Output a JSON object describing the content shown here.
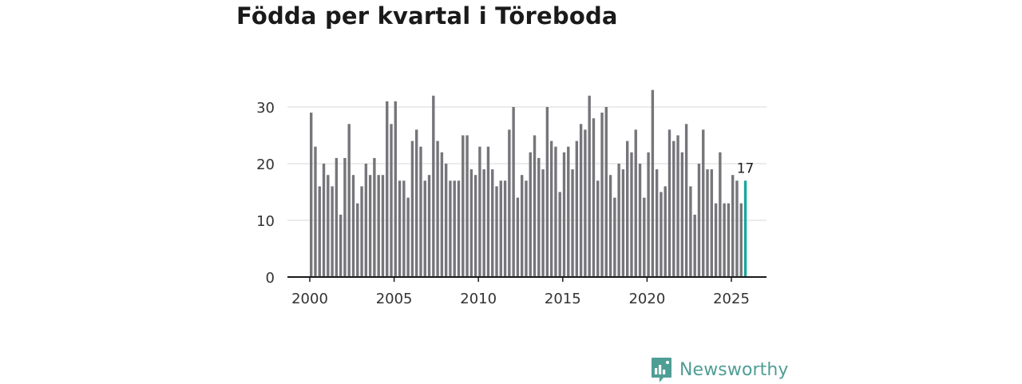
{
  "chart_data": {
    "type": "bar",
    "title": "Födda per kvartal i Töreboda",
    "xlabel": "",
    "ylabel": "",
    "x_axis": {
      "min": 2000,
      "max": 2027,
      "ticks": [
        2000,
        2005,
        2010,
        2015,
        2020,
        2025
      ]
    },
    "y_axis": {
      "min": 0,
      "max": 35,
      "ticks": [
        0,
        10,
        20,
        30
      ]
    },
    "grid": "horizontal",
    "series": [
      {
        "start_quarter": "2000-Q1",
        "values": [
          29,
          23,
          16,
          20,
          18,
          16,
          21,
          11,
          21,
          27,
          18,
          13,
          16,
          20,
          18,
          21,
          18,
          18,
          31,
          27,
          31,
          17,
          17,
          14,
          24,
          26,
          23,
          17,
          18,
          32,
          24,
          22,
          20,
          17,
          17,
          17,
          25,
          25,
          19,
          18,
          23,
          19,
          23,
          19,
          16,
          17,
          17,
          26,
          30,
          14,
          18,
          17,
          22,
          25,
          21,
          19,
          30,
          24,
          23,
          15,
          22,
          23,
          19,
          24,
          27,
          26,
          32,
          28,
          17,
          29,
          30,
          18,
          14,
          20,
          19,
          24,
          22,
          26,
          20,
          14,
          22,
          33,
          19,
          15,
          16,
          26,
          24,
          25,
          22,
          27,
          16,
          11,
          20,
          26,
          19,
          19,
          13,
          22,
          13,
          13,
          18,
          17,
          13,
          17
        ]
      }
    ],
    "highlight": {
      "quarter": "2025-Q4",
      "value": 17,
      "label": "17"
    },
    "colors": {
      "bar": "#76757a",
      "highlight": "#16a99b",
      "grid": "#d9d9d9",
      "axis": "#1a1a1a"
    }
  },
  "brand": {
    "name": "Newsworthy",
    "icon": "newsworthy-logo-icon",
    "color": "#4f9e95"
  }
}
